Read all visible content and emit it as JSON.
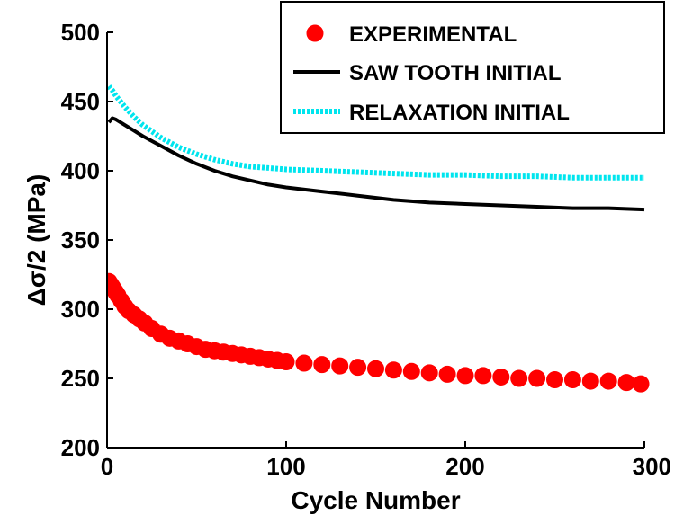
{
  "chart_data": {
    "type": "line",
    "xlabel": "Cycle Number",
    "ylabel": "Δσ/2 (MPa)",
    "xlim": [
      0,
      300
    ],
    "ylim": [
      200,
      500
    ],
    "xticks": [
      "0",
      "100",
      "200",
      "300"
    ],
    "yticks": [
      "200",
      "250",
      "300",
      "350",
      "400",
      "450",
      "500"
    ],
    "xtick_values": [
      0,
      100,
      200,
      300
    ],
    "ytick_values": [
      200,
      250,
      300,
      350,
      400,
      450,
      500
    ],
    "grid": false,
    "legend_position": "top-right",
    "series": [
      {
        "name": "EXPERIMENTAL",
        "style": "markers",
        "color": "#ff0000",
        "x": [
          1,
          2,
          3,
          4,
          5,
          6,
          8,
          10,
          12,
          15,
          18,
          21,
          25,
          30,
          35,
          40,
          45,
          50,
          55,
          60,
          65,
          70,
          75,
          80,
          85,
          90,
          95,
          100,
          110,
          120,
          130,
          140,
          150,
          160,
          170,
          180,
          190,
          200,
          210,
          220,
          230,
          240,
          250,
          260,
          270,
          280,
          290,
          298
        ],
        "y": [
          320,
          318,
          316,
          314,
          312,
          310,
          306,
          302,
          299,
          296,
          293,
          290,
          286,
          282,
          279,
          277,
          275,
          273,
          271,
          270,
          269,
          268,
          267,
          266,
          265,
          264,
          263,
          262,
          261,
          260,
          259,
          258,
          257,
          256,
          255,
          254,
          253,
          252,
          252,
          251,
          250,
          250,
          249,
          249,
          248,
          248,
          247,
          246
        ]
      },
      {
        "name": "SAW TOOTH INITIAL",
        "style": "solid",
        "color": "#000000",
        "x": [
          1,
          3,
          5,
          10,
          15,
          20,
          30,
          40,
          50,
          60,
          70,
          80,
          90,
          100,
          120,
          140,
          160,
          180,
          200,
          220,
          240,
          260,
          280,
          300
        ],
        "y": [
          435,
          438,
          437,
          433,
          429,
          425,
          418,
          411,
          405,
          400,
          396,
          393,
          390,
          388,
          385,
          382,
          379,
          377,
          376,
          375,
          374,
          373,
          373,
          372
        ]
      },
      {
        "name": "RELAXATION INITIAL",
        "style": "dotted",
        "color": "#00e5ee",
        "x": [
          1,
          3,
          5,
          10,
          15,
          20,
          30,
          40,
          50,
          60,
          70,
          80,
          90,
          100,
          120,
          140,
          160,
          180,
          200,
          220,
          240,
          260,
          280,
          300
        ],
        "y": [
          461,
          458,
          454,
          446,
          439,
          433,
          424,
          417,
          412,
          408,
          405,
          403,
          402,
          401,
          400,
          399,
          398,
          397,
          397,
          396,
          396,
          395,
          395,
          395
        ]
      }
    ]
  }
}
